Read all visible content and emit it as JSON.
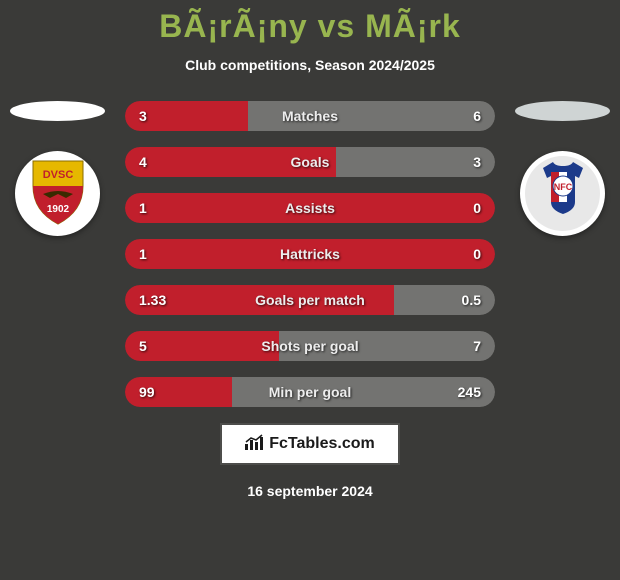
{
  "header": {
    "title": "BÃ¡rÃ¡ny vs MÃ¡rk",
    "subtitle": "Club competitions, Season 2024/2025"
  },
  "colors": {
    "background": "#3a3a38",
    "title_color": "#98b54f",
    "text_color": "#ffffff",
    "bar_left_color": "#c11f2c",
    "bar_right_color": "#737371",
    "footer_logo_bg": "#ffffff"
  },
  "player_left": {
    "oval_color": "#ffffff",
    "badge_top_color": "#e6b800",
    "badge_top_text": "DVSC",
    "badge_bottom_color": "#c11f2c",
    "badge_bottom_text": "1902"
  },
  "player_right": {
    "oval_color": "#cfd4d4",
    "badge_colors": {
      "top": "#1c3a8a",
      "bottom": "#ffffff",
      "left_stripe": "#c11f2c",
      "right_stripe": "#ffffff",
      "center_stripe": "#1c3a8a"
    },
    "badge_text": "NFC"
  },
  "stats": [
    {
      "label": "Matches",
      "left_value": "3",
      "right_value": "6",
      "left_pct": 33.3,
      "right_pct": 66.7
    },
    {
      "label": "Goals",
      "left_value": "4",
      "right_value": "3",
      "left_pct": 57.1,
      "right_pct": 42.9
    },
    {
      "label": "Assists",
      "left_value": "1",
      "right_value": "0",
      "left_pct": 100,
      "right_pct": 0
    },
    {
      "label": "Hattricks",
      "left_value": "1",
      "right_value": "0",
      "left_pct": 100,
      "right_pct": 0
    },
    {
      "label": "Goals per match",
      "left_value": "1.33",
      "right_value": "0.5",
      "left_pct": 72.7,
      "right_pct": 27.3
    },
    {
      "label": "Shots per goal",
      "left_value": "5",
      "right_value": "7",
      "left_pct": 41.7,
      "right_pct": 58.3
    },
    {
      "label": "Min per goal",
      "left_value": "99",
      "right_value": "245",
      "left_pct": 28.8,
      "right_pct": 71.2
    }
  ],
  "footer": {
    "logo_text": "FcTables.com",
    "date": "16 september 2024"
  }
}
